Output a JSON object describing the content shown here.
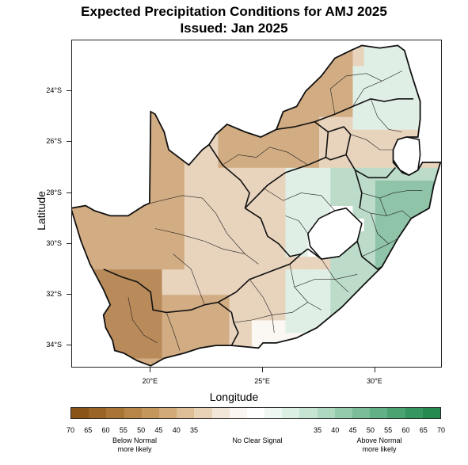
{
  "title_line1": "Expected Precipitation Conditions for AMJ 2025",
  "title_line2": "Issued: Jan 2025",
  "axes": {
    "xlabel": "Longitude",
    "ylabel": "Latitude",
    "lon_range": [
      16.5,
      33.0
    ],
    "lat_range": [
      -34.9,
      -22.0
    ],
    "lat_ticks": [
      {
        "value": -24,
        "label": "24°S"
      },
      {
        "value": -26,
        "label": "26°S"
      },
      {
        "value": -28,
        "label": "28°S"
      },
      {
        "value": -30,
        "label": "30°S"
      },
      {
        "value": -32,
        "label": "32°S"
      },
      {
        "value": -34,
        "label": "34°S"
      }
    ],
    "lon_ticks": [
      {
        "value": 20,
        "label": "20°E"
      },
      {
        "value": 25,
        "label": "25°E"
      },
      {
        "value": 30,
        "label": "30°E"
      }
    ]
  },
  "legend": {
    "colors": [
      "#8a5418",
      "#9a6425",
      "#a97535",
      "#b78547",
      "#c4975d",
      "#d1aa77",
      "#ddbe96",
      "#e8d3b7",
      "#f2e6d8",
      "#fbf6f1",
      "#ffffff",
      "#eef7f1",
      "#dcefe3",
      "#c6e4d2",
      "#aed8c0",
      "#94cbac",
      "#7bbd98",
      "#62b085",
      "#4ba372",
      "#369660",
      "#248a50"
    ],
    "tick_labels": [
      "70",
      "65",
      "60",
      "55",
      "50",
      "45",
      "40",
      "35",
      "35",
      "40",
      "45",
      "50",
      "55",
      "60",
      "65",
      "70"
    ],
    "captions": {
      "below": "Below Normal\nmore likely",
      "neutral": "No Clear Signal",
      "above": "Above Normal\nmore likely"
    }
  },
  "colors": {
    "below_strong": "#b98a5a",
    "below_medium": "#d2ac82",
    "below_weak": "#e8d3bd",
    "neutral": "#fbf7f3",
    "above_weak": "#e0efe6",
    "above_medium": "#bcdcc9",
    "above_strong": "#8fc4a8",
    "lesotho": "#ffffff"
  }
}
